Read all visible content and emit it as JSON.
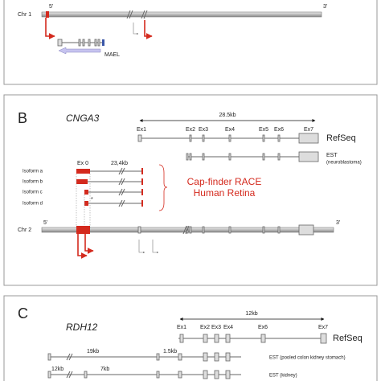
{
  "panel_a": {
    "chr_label": "Chr 1",
    "five_prime": "5'",
    "three_prime": "3'",
    "gene": "MAEL"
  },
  "panel_b": {
    "letter": "B",
    "gene": "CNGA3",
    "span": "28.5kb",
    "exons": [
      "Ex1",
      "Ex2",
      "Ex3",
      "Ex4",
      "Ex5",
      "Ex6",
      "Ex7"
    ],
    "refseq": "RefSeq",
    "est": "EST",
    "est_source": "(neuroblastoma)",
    "ex0": "Ex 0",
    "intron": "23,4kb",
    "isoforms": [
      "Isoform a",
      "Isoform b",
      "Isoform c",
      "Isoform d"
    ],
    "asterisk": "*",
    "race": [
      "Cap-finder RACE",
      "Human Retina"
    ],
    "five_prime": "5'",
    "three_prime": "3'",
    "chr_label": "Chr 2"
  },
  "panel_c": {
    "letter": "C",
    "gene": "RDH12",
    "span": "12kb",
    "exons": [
      "Ex1",
      "Ex2",
      "Ex3",
      "Ex4",
      "Ex6",
      "Ex7"
    ],
    "refseq": "RefSeq",
    "intron_a": "19kb",
    "intron_b": "1.5kb",
    "est_1": "EST (pooled  colon kidney stomach)",
    "intron_c": "12kb",
    "intron_d": "7kb",
    "est_2": "EST (kidney)"
  }
}
